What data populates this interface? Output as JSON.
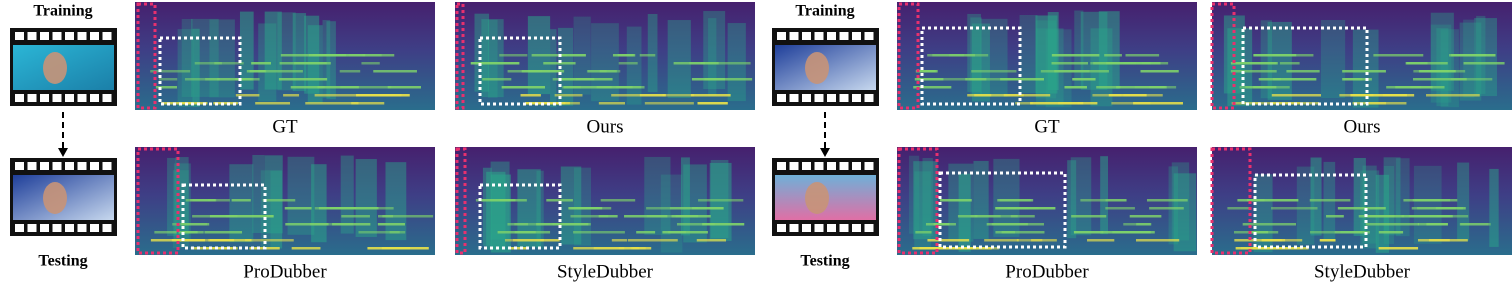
{
  "panels": [
    {
      "training_label": "Training",
      "testing_label": "Testing",
      "spectrograms": [
        {
          "label": "GT"
        },
        {
          "label": "Ours"
        },
        {
          "label": "ProDubber"
        },
        {
          "label": "StyleDubber"
        }
      ]
    },
    {
      "training_label": "Training",
      "testing_label": "Testing",
      "spectrograms": [
        {
          "label": "GT"
        },
        {
          "label": "Ours"
        },
        {
          "label": "ProDubber"
        },
        {
          "label": "StyleDubber"
        }
      ]
    }
  ]
}
